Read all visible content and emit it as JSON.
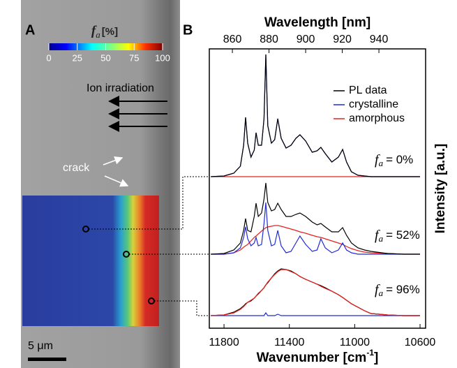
{
  "figure": {
    "panel_labels": [
      "A",
      "B"
    ],
    "irradiation_label": "Ion irradiation",
    "crack_label": "crack",
    "scale_label": "5 μm",
    "colorbar": {
      "symbol": "f",
      "subscript": "a",
      "unit": "[%]",
      "lim": [
        0,
        100
      ],
      "ticks": [
        0,
        25,
        50,
        75,
        100
      ]
    }
  },
  "chart_data": {
    "type": "line",
    "x_label": "Wavenumber [cm",
    "x_label_sup": "-1",
    "x_label_end": "]",
    "x2_label": "Wavelength [nm]",
    "y_label": "Intensity [a.u.]",
    "xlim": [
      11890,
      10566
    ],
    "xticks": [
      11800,
      11400,
      11000,
      10600
    ],
    "x2lim": [
      847.4,
      965.5
    ],
    "x2ticks": [
      860,
      880,
      900,
      920,
      940
    ],
    "ylim": [
      0,
      400
    ],
    "legend": "upper right",
    "annotation_symbol": "f",
    "annotation_subscript": "a",
    "annotations": [
      "= 0%",
      "= 52%",
      "= 96%"
    ],
    "x": [
      11880,
      11800,
      11740,
      11700,
      11680,
      11668,
      11655,
      11635,
      11615,
      11604,
      11590,
      11570,
      11555,
      11544,
      11532,
      11510,
      11490,
      11471,
      11450,
      11420,
      11390,
      11360,
      11335,
      11300,
      11260,
      11230,
      11207,
      11180,
      11140,
      11100,
      11074,
      11050,
      11020,
      10980,
      10940,
      10900,
      10800,
      10700,
      10600
    ],
    "series": [
      {
        "name": "PL data",
        "color": "#000000",
        "values": [
          217,
          218,
          222,
          232,
          262,
          302,
          265,
          245,
          255,
          280,
          262,
          262,
          300,
          392,
          290,
          265,
          270,
          300,
          272,
          258,
          262,
          272,
          277,
          268,
          252,
          254,
          259,
          250,
          238,
          245,
          256,
          238,
          224,
          219,
          218,
          217,
          217,
          217,
          217
        ]
      },
      {
        "name": "crystalline",
        "color": "#1f2bd6",
        "values": [
          217,
          218,
          222,
          232,
          262,
          302,
          265,
          245,
          255,
          280,
          262,
          262,
          300,
          392,
          290,
          265,
          270,
          300,
          272,
          258,
          262,
          272,
          277,
          268,
          252,
          254,
          259,
          250,
          238,
          245,
          256,
          238,
          224,
          219,
          218,
          217,
          217,
          217,
          217
        ]
      },
      {
        "name": "amorphous",
        "color": "#e8201c",
        "values": [
          217,
          217,
          217,
          217,
          217,
          217,
          217,
          217,
          217,
          217,
          217,
          217,
          217,
          217,
          217,
          217,
          217,
          217,
          217,
          217,
          217,
          217,
          217,
          217,
          217,
          217,
          217,
          217,
          217,
          217,
          217,
          217,
          217,
          217,
          217,
          217,
          217,
          217,
          217
        ]
      },
      {
        "name": "PL data",
        "color": "#000000",
        "values": [
          106,
          107,
          112,
          122,
          140,
          157,
          140,
          138,
          160,
          179,
          160,
          165,
          185,
          208,
          180,
          168,
          170,
          179,
          170,
          160,
          160,
          163,
          165,
          160,
          152,
          148,
          150,
          145,
          138,
          138,
          144,
          133,
          122,
          115,
          112,
          110,
          107,
          106,
          106
        ]
      },
      {
        "name": "crystalline",
        "color": "#1f2bd6",
        "values": [
          106,
          106,
          108,
          115,
          130,
          145,
          128,
          118,
          122,
          130,
          118,
          120,
          150,
          180,
          140,
          118,
          120,
          140,
          118,
          108,
          110,
          122,
          132,
          120,
          110,
          112,
          128,
          115,
          108,
          112,
          122,
          112,
          108,
          106,
          106,
          106,
          106,
          106,
          106
        ]
      },
      {
        "name": "amorphous",
        "color": "#e8201c",
        "values": [
          106,
          106,
          108,
          112,
          116,
          118,
          120,
          125,
          130,
          132,
          135,
          139,
          142,
          144,
          145,
          146,
          147,
          147,
          146,
          144,
          142,
          140,
          138,
          136,
          133,
          131,
          130,
          128,
          125,
          122,
          120,
          117,
          114,
          111,
          109,
          108,
          107,
          106,
          106
        ]
      },
      {
        "name": "PL data",
        "color": "#000000",
        "values": [
          18,
          19,
          23,
          28,
          32,
          35,
          37,
          39,
          43,
          46,
          49,
          54,
          58,
          62,
          65,
          72,
          78,
          82,
          85,
          84,
          82,
          78,
          74,
          70,
          66,
          63,
          61,
          58,
          53,
          48,
          44,
          40,
          35,
          30,
          25,
          21,
          19,
          18,
          18
        ]
      },
      {
        "name": "crystalline",
        "color": "#1f2bd6",
        "values": [
          18,
          18,
          18,
          18,
          18,
          18,
          18,
          18,
          18,
          18,
          18,
          18,
          18,
          22,
          18,
          18,
          18,
          20,
          18,
          18,
          18,
          18,
          18,
          18,
          18,
          18,
          18,
          18,
          18,
          18,
          18,
          18,
          18,
          18,
          18,
          18,
          18,
          18,
          18
        ]
      },
      {
        "name": "amorphous",
        "color": "#e8201c",
        "values": [
          18,
          19,
          22,
          27,
          31,
          34,
          37,
          40,
          43,
          46,
          50,
          54,
          58,
          62,
          66,
          72,
          77,
          81,
          84,
          84,
          81,
          78,
          74,
          70,
          66,
          63,
          60,
          57,
          53,
          48,
          44,
          40,
          35,
          30,
          25,
          21,
          19,
          18,
          18
        ]
      }
    ]
  }
}
